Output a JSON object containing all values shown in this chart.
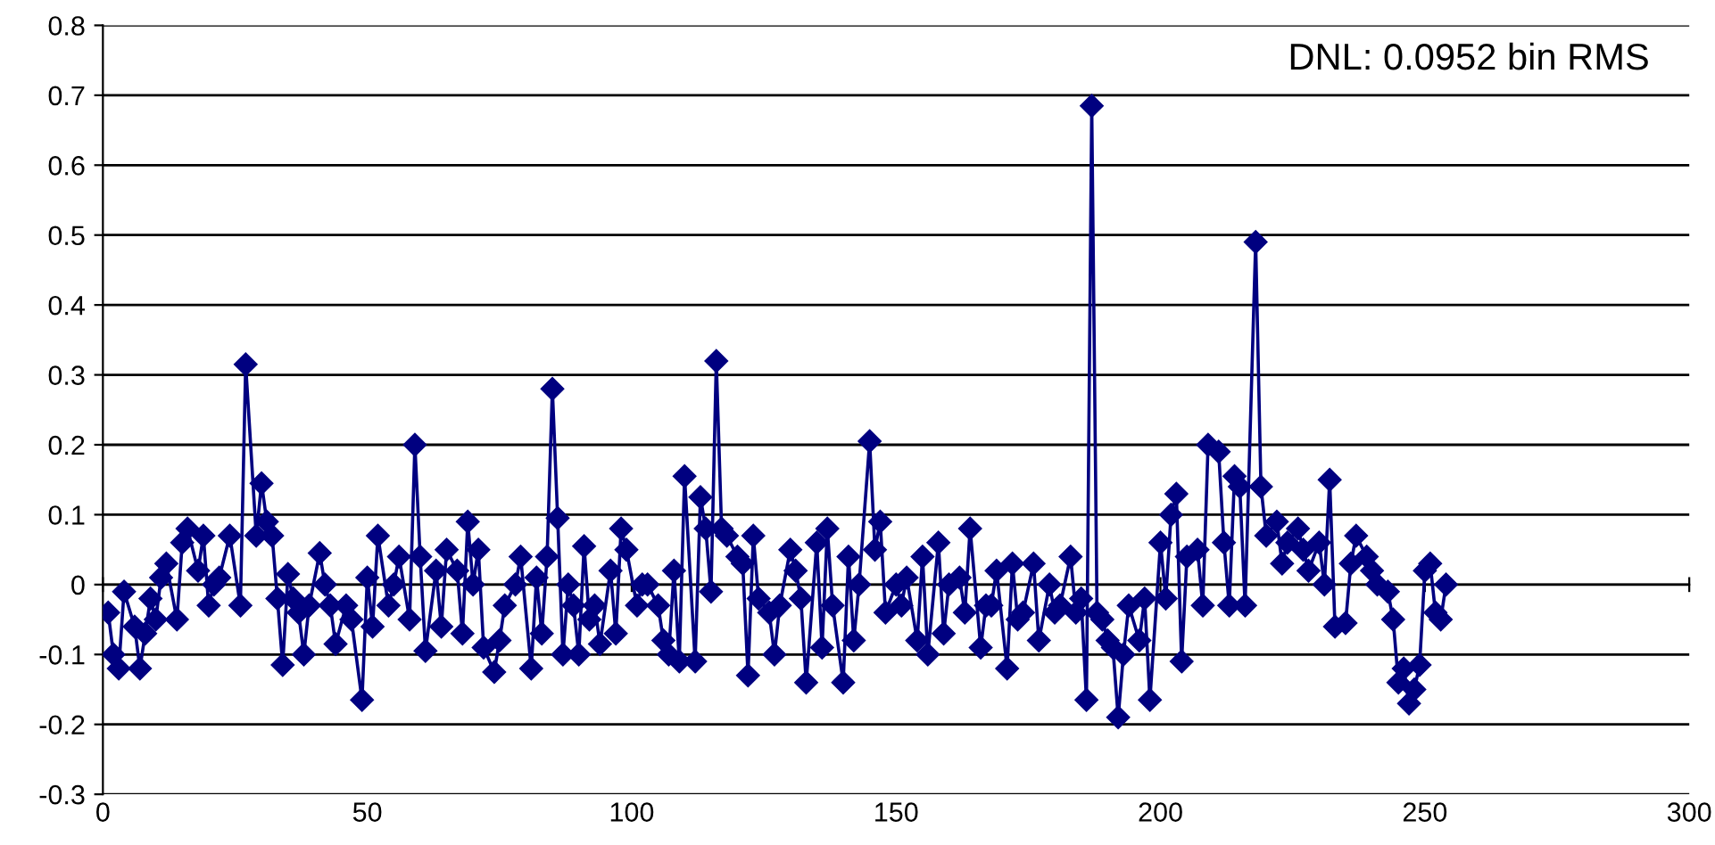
{
  "chart_data": {
    "type": "line",
    "x": [
      1,
      2,
      3,
      4,
      6,
      7,
      8,
      9,
      10,
      11,
      12,
      14,
      15,
      16,
      18,
      19,
      20,
      21,
      22,
      24,
      26,
      27,
      29,
      30,
      31,
      32,
      33,
      34,
      35,
      36,
      37,
      38,
      39,
      41,
      42,
      43,
      44,
      46,
      47,
      49,
      50,
      51,
      52,
      54,
      55,
      56,
      58,
      59,
      60,
      61,
      63,
      64,
      65,
      67,
      68,
      69,
      70,
      71,
      72,
      74,
      75,
      76,
      78,
      79,
      81,
      82,
      83,
      84,
      85,
      86,
      87,
      88,
      89,
      90,
      91,
      92,
      93,
      94,
      96,
      97,
      98,
      99,
      101,
      102,
      103,
      105,
      106,
      107,
      108,
      109,
      110,
      112,
      113,
      114,
      115,
      116,
      117,
      118,
      120,
      121,
      122,
      123,
      124,
      126,
      127,
      128,
      130,
      131,
      132,
      133,
      135,
      136,
      137,
      138,
      140,
      141,
      142,
      143,
      145,
      146,
      147,
      148,
      150,
      151,
      152,
      154,
      155,
      156,
      158,
      159,
      160,
      162,
      163,
      164,
      166,
      167,
      168,
      169,
      171,
      172,
      173,
      174,
      176,
      177,
      179,
      180,
      181,
      183,
      184,
      185,
      186,
      187,
      188,
      189,
      190,
      191,
      192,
      193,
      194,
      196,
      197,
      198,
      200,
      201,
      202,
      203,
      204,
      205,
      207,
      208,
      209,
      211,
      212,
      213,
      214,
      215,
      216,
      218,
      219,
      220,
      222,
      223,
      224,
      226,
      227,
      228,
      230,
      231,
      232,
      233,
      235,
      236,
      237,
      239,
      240,
      241,
      243,
      244,
      245,
      246,
      247,
      248,
      249,
      250,
      251,
      252,
      253,
      254
    ],
    "series": [
      {
        "color": "#000080",
        "values": [
          -0.04,
          -0.1,
          -0.12,
          -0.01,
          -0.06,
          -0.12,
          -0.07,
          -0.02,
          -0.05,
          0.01,
          0.03,
          -0.05,
          0.06,
          0.08,
          0.02,
          0.07,
          -0.03,
          0.0,
          0.01,
          0.07,
          -0.03,
          0.315,
          0.07,
          0.145,
          0.09,
          0.07,
          -0.02,
          -0.115,
          0.015,
          -0.02,
          -0.04,
          -0.1,
          -0.03,
          0.045,
          0.0,
          -0.03,
          -0.085,
          -0.03,
          -0.05,
          -0.165,
          0.01,
          -0.06,
          0.07,
          -0.03,
          0.0,
          0.04,
          -0.05,
          0.2,
          0.04,
          -0.095,
          0.02,
          -0.06,
          0.05,
          0.02,
          -0.07,
          0.09,
          0.0,
          0.05,
          -0.09,
          -0.125,
          -0.08,
          -0.03,
          0.0,
          0.04,
          -0.12,
          0.01,
          -0.07,
          0.04,
          0.28,
          0.095,
          -0.1,
          0.0,
          -0.03,
          -0.1,
          0.055,
          -0.05,
          -0.03,
          -0.085,
          0.02,
          -0.07,
          0.08,
          0.05,
          -0.03,
          0.0,
          0.0,
          -0.03,
          -0.08,
          -0.1,
          0.02,
          -0.11,
          0.155,
          -0.11,
          0.125,
          0.08,
          -0.01,
          0.32,
          0.08,
          0.07,
          0.04,
          0.03,
          -0.13,
          0.07,
          -0.02,
          -0.04,
          -0.1,
          -0.03,
          0.05,
          0.02,
          -0.02,
          -0.14,
          0.06,
          -0.09,
          0.08,
          -0.03,
          -0.14,
          0.04,
          -0.08,
          0.0,
          0.205,
          0.05,
          0.09,
          -0.04,
          0.0,
          -0.03,
          0.01,
          -0.08,
          0.04,
          -0.1,
          0.06,
          -0.07,
          0.0,
          0.01,
          -0.04,
          0.08,
          -0.09,
          -0.03,
          -0.03,
          0.02,
          -0.12,
          0.03,
          -0.05,
          -0.04,
          0.03,
          -0.08,
          0.0,
          -0.04,
          -0.03,
          0.04,
          -0.04,
          -0.02,
          -0.165,
          0.685,
          -0.04,
          -0.05,
          -0.08,
          -0.09,
          -0.19,
          -0.1,
          -0.03,
          -0.08,
          -0.02,
          -0.165,
          0.06,
          -0.02,
          0.1,
          0.13,
          -0.11,
          0.04,
          0.05,
          -0.03,
          0.2,
          0.19,
          0.06,
          -0.03,
          0.155,
          0.14,
          -0.03,
          0.49,
          0.14,
          0.07,
          0.09,
          0.03,
          0.06,
          0.08,
          0.05,
          0.02,
          0.06,
          0.0,
          0.15,
          -0.06,
          -0.055,
          0.03,
          0.07,
          0.04,
          0.02,
          0.0,
          -0.01,
          -0.05,
          -0.14,
          -0.12,
          -0.17,
          -0.15,
          -0.115,
          0.02,
          0.03,
          -0.04,
          -0.05,
          0.0
        ]
      }
    ],
    "xlim": [
      0,
      300
    ],
    "xticks": [
      0,
      50,
      100,
      150,
      200,
      250,
      300
    ],
    "ylim": [
      -0.3,
      0.8
    ],
    "yticks": [
      -0.3,
      -0.2,
      -0.1,
      0,
      0.1,
      0.2,
      0.3,
      0.4,
      0.5,
      0.6,
      0.7,
      0.8
    ],
    "grid": "y",
    "marker": "diamond",
    "line_style": "solid",
    "annotations": [
      "DNL: 0.0952 bin RMS"
    ]
  }
}
